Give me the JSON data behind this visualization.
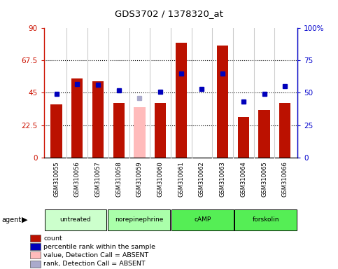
{
  "title": "GDS3702 / 1378320_at",
  "samples": [
    "GSM310055",
    "GSM310056",
    "GSM310057",
    "GSM310058",
    "GSM310059",
    "GSM310060",
    "GSM310061",
    "GSM310062",
    "GSM310063",
    "GSM310064",
    "GSM310065",
    "GSM310066"
  ],
  "counts": [
    37,
    55,
    53,
    38,
    null,
    38,
    80,
    null,
    78,
    28,
    33,
    38
  ],
  "absent_counts": [
    null,
    null,
    null,
    null,
    35,
    null,
    null,
    null,
    null,
    null,
    null,
    null
  ],
  "percentile_ranks": [
    49,
    57,
    56,
    52,
    null,
    51,
    65,
    53,
    65,
    43,
    49,
    55
  ],
  "absent_ranks": [
    null,
    null,
    null,
    null,
    46,
    null,
    null,
    null,
    null,
    null,
    null,
    null
  ],
  "bar_color": "#bb1100",
  "absent_bar_color": "#ffbbbb",
  "rank_color": "#0000bb",
  "absent_rank_color": "#aaaacc",
  "ylim_left": [
    0,
    90
  ],
  "ylim_right": [
    0,
    100
  ],
  "yticks_left": [
    0,
    22.5,
    45,
    67.5,
    90
  ],
  "yticks_right": [
    0,
    25,
    50,
    75,
    100
  ],
  "ytick_labels_left": [
    "0",
    "22.5",
    "45",
    "67.5",
    "90"
  ],
  "ytick_labels_right": [
    "0",
    "25",
    "50",
    "75",
    "100%"
  ],
  "groups": [
    {
      "label": "untreated",
      "indices": [
        0,
        1,
        2
      ],
      "color": "#ccffcc"
    },
    {
      "label": "norepinephrine",
      "indices": [
        3,
        4,
        5
      ],
      "color": "#aaffaa"
    },
    {
      "label": "cAMP",
      "indices": [
        6,
        7,
        8
      ],
      "color": "#55ee55"
    },
    {
      "label": "forskolin",
      "indices": [
        9,
        10,
        11
      ],
      "color": "#55ee55"
    }
  ],
  "left_axis_color": "#cc1100",
  "right_axis_color": "#0000cc",
  "grid_color": "#000000",
  "background_color": "#ffffff",
  "sample_bg_color": "#cccccc",
  "bar_width": 0.55,
  "legend_items": [
    {
      "label": "count",
      "color": "#bb1100"
    },
    {
      "label": "percentile rank within the sample",
      "color": "#0000bb"
    },
    {
      "label": "value, Detection Call = ABSENT",
      "color": "#ffbbbb"
    },
    {
      "label": "rank, Detection Call = ABSENT",
      "color": "#aaaacc"
    }
  ]
}
